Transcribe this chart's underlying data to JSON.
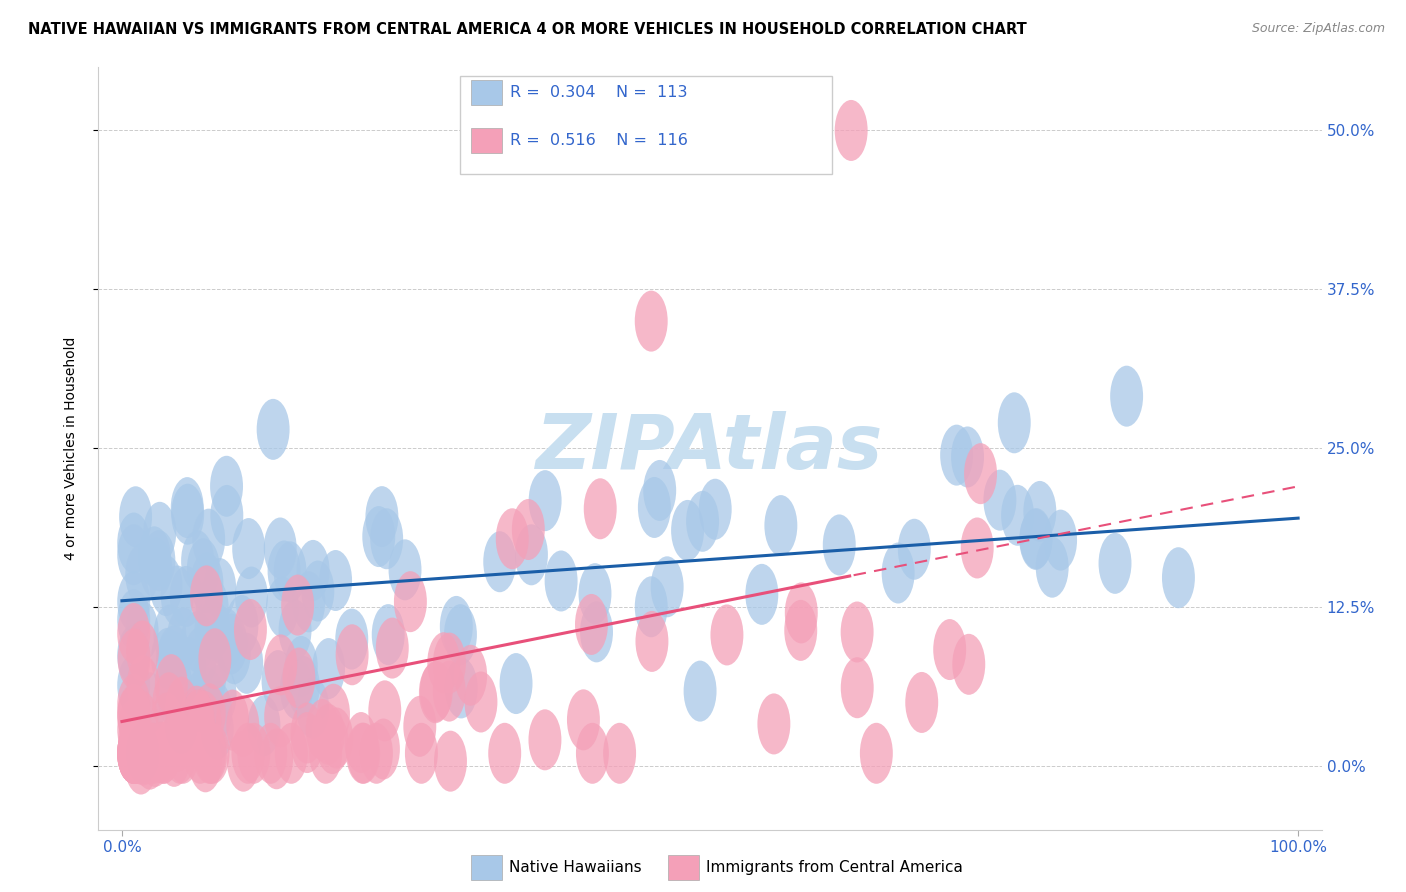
{
  "title": "NATIVE HAWAIIAN VS IMMIGRANTS FROM CENTRAL AMERICA 4 OR MORE VEHICLES IN HOUSEHOLD CORRELATION CHART",
  "source": "Source: ZipAtlas.com",
  "ylabel": "4 or more Vehicles in Household",
  "blue_color": "#a8c8e8",
  "pink_color": "#f4a0b8",
  "blue_line_color": "#1a5ea8",
  "pink_line_color": "#e8507a",
  "watermark_color": "#c8dff0",
  "background_color": "#ffffff",
  "title_fontsize": 10.5,
  "tick_color": "#3366cc",
  "ytick_vals": [
    0.0,
    12.5,
    25.0,
    37.5,
    50.0
  ],
  "ytick_labels": [
    "0.0%",
    "12.5%",
    "25.0%",
    "37.5%",
    "50.0%"
  ],
  "xtick_vals": [
    0,
    100
  ],
  "xtick_labels": [
    "0.0%",
    "100.0%"
  ],
  "ylim_min": -5,
  "ylim_max": 55,
  "xlim_min": -2,
  "xlim_max": 102,
  "legend_r1": "R =  0.304",
  "legend_n1": "N =  113",
  "legend_r2": "R =  0.516",
  "legend_n2": "N =  116",
  "blue_intercept": 13.0,
  "blue_slope": 0.065,
  "pink_intercept": 3.5,
  "pink_slope": 0.185,
  "pink_line_solid_end": 62
}
